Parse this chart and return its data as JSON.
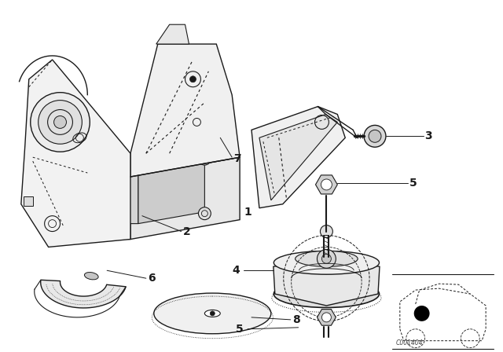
{
  "bg_color": "#ffffff",
  "line_color": "#1a1a1a",
  "fig_width": 6.4,
  "fig_height": 4.48,
  "dpi": 100,
  "watermark": "C001404"
}
